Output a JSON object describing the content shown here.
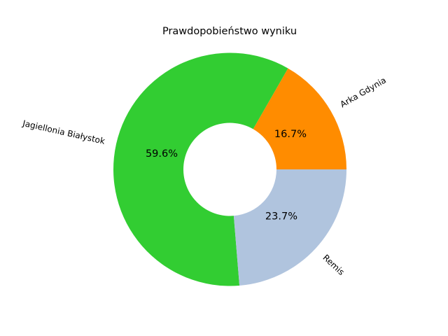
{
  "chart_data": {
    "type": "pie",
    "title": "Prawdopobieństwo wyniku",
    "donut": true,
    "start_angle_deg": 0,
    "direction": "counterclockwise",
    "categories": [
      "Arka Gdynia",
      "Jagiellonia Białystok",
      "Remis"
    ],
    "values": [
      16.7,
      59.6,
      23.7
    ],
    "value_labels": [
      "16.7%",
      "59.6%",
      "23.7%"
    ],
    "colors": [
      "#ff8c00",
      "#32cd32",
      "#b0c4de"
    ]
  }
}
